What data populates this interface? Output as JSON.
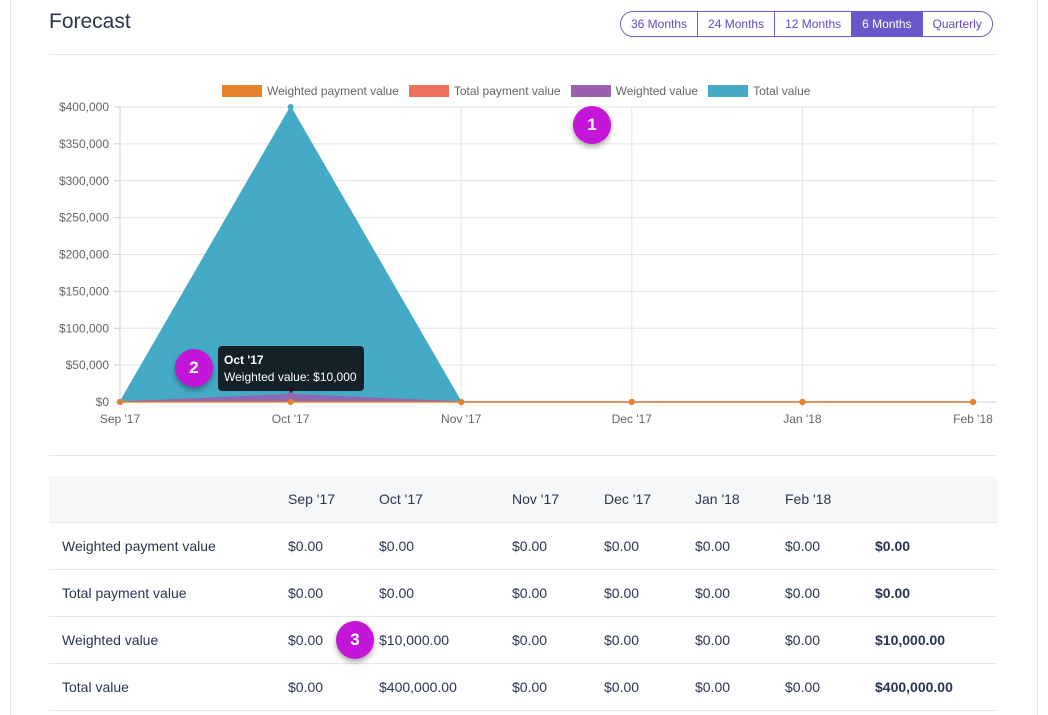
{
  "header": {
    "title": "Forecast",
    "range_options": [
      "36 Months",
      "24 Months",
      "12 Months",
      "6 Months",
      "Quarterly"
    ],
    "active_range": "6 Months"
  },
  "colors": {
    "weighted_payment": "#e8822a",
    "total_payment": "#f07060",
    "weighted_value": "#9b5fb0",
    "total_value": "#45aac5",
    "accent": "#6b57c9",
    "marker": "#c316d8"
  },
  "chart_data": {
    "type": "area",
    "x": [
      "Sep '17",
      "Oct '17",
      "Nov '17",
      "Dec '17",
      "Jan '18",
      "Feb '18"
    ],
    "series": [
      {
        "name": "Weighted payment value",
        "values": [
          0,
          0,
          0,
          0,
          0,
          0
        ]
      },
      {
        "name": "Total payment value",
        "values": [
          0,
          0,
          0,
          0,
          0,
          0
        ]
      },
      {
        "name": "Weighted value",
        "values": [
          0,
          10000,
          0,
          0,
          0,
          0
        ]
      },
      {
        "name": "Total value",
        "values": [
          0,
          400000,
          0,
          0,
          0,
          0
        ]
      }
    ],
    "y_ticks": [
      "$0",
      "$50,000",
      "$100,000",
      "$150,000",
      "$200,000",
      "$250,000",
      "$300,000",
      "$350,000",
      "$400,000"
    ],
    "ylim": [
      0,
      400000
    ],
    "legend_position": "top",
    "grid": true
  },
  "tooltip": {
    "title": "Oct '17",
    "body": "Weighted value: $10,000"
  },
  "markers": [
    "1",
    "2",
    "3"
  ],
  "table": {
    "columns": [
      "Sep '17",
      "Oct '17",
      "Nov '17",
      "Dec '17",
      "Jan '18",
      "Feb '18"
    ],
    "rows": [
      {
        "label": "Weighted payment value",
        "cells": [
          "$0.00",
          "$0.00",
          "$0.00",
          "$0.00",
          "$0.00",
          "$0.00"
        ],
        "total": "$0.00"
      },
      {
        "label": "Total payment value",
        "cells": [
          "$0.00",
          "$0.00",
          "$0.00",
          "$0.00",
          "$0.00",
          "$0.00"
        ],
        "total": "$0.00"
      },
      {
        "label": "Weighted value",
        "cells": [
          "$0.00",
          "$10,000.00",
          "$0.00",
          "$0.00",
          "$0.00",
          "$0.00"
        ],
        "total": "$10,000.00"
      },
      {
        "label": "Total value",
        "cells": [
          "$0.00",
          "$400,000.00",
          "$0.00",
          "$0.00",
          "$0.00",
          "$0.00"
        ],
        "total": "$400,000.00"
      }
    ]
  }
}
